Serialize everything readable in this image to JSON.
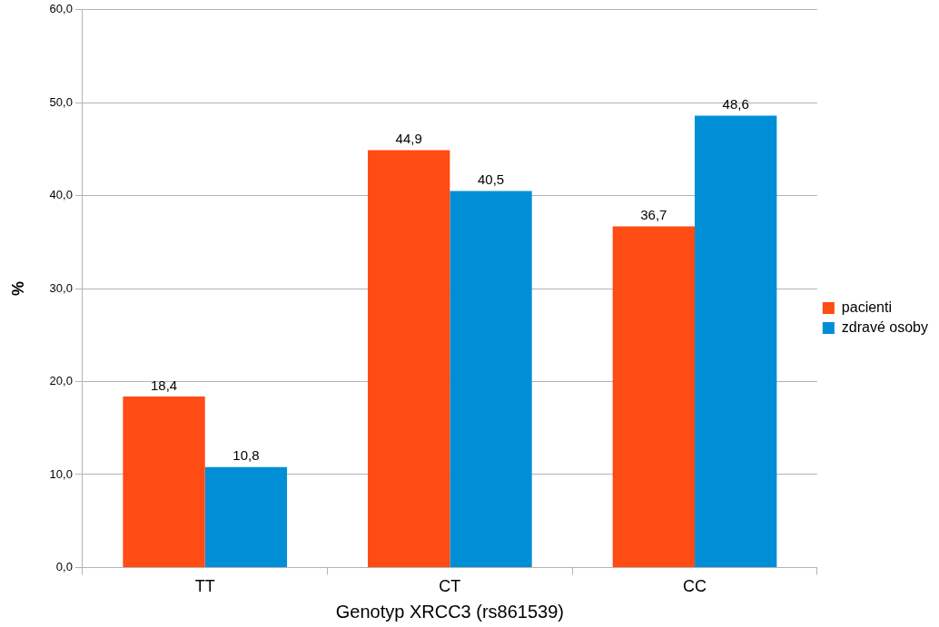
{
  "chart_data": {
    "type": "bar",
    "xlabel": "Genotyp XRCC3 (rs861539)",
    "ylabel": "%",
    "categories": [
      "TT",
      "CT",
      "CC"
    ],
    "series": [
      {
        "name": "pacienti",
        "color": "#ff4b14",
        "values": [
          18.4,
          44.9,
          36.7
        ],
        "value_labels": [
          "18,4",
          "44,9",
          "36,7"
        ]
      },
      {
        "name": "zdravé osoby",
        "color": "#008fd6",
        "values": [
          10.8,
          40.5,
          48.6
        ],
        "value_labels": [
          "10,8",
          "40,5",
          "48,6"
        ]
      }
    ],
    "ylim": [
      0,
      60
    ],
    "yticks": [
      {
        "value": 0,
        "label": "0,0"
      },
      {
        "value": 10,
        "label": "10,0"
      },
      {
        "value": 20,
        "label": "20,0"
      },
      {
        "value": 30,
        "label": "30,0"
      },
      {
        "value": 40,
        "label": "40,0"
      },
      {
        "value": 50,
        "label": "50,0"
      },
      {
        "value": 60,
        "label": "60,0"
      }
    ],
    "grid": "y",
    "legend": "right"
  }
}
